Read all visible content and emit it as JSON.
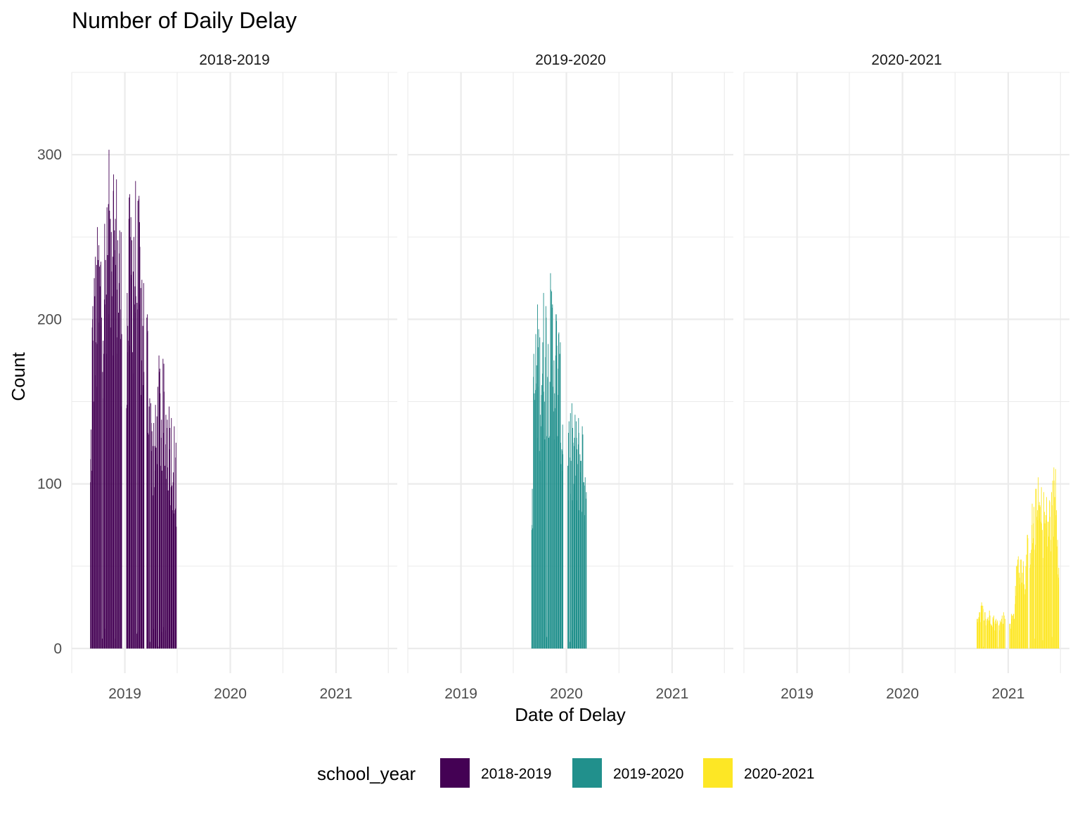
{
  "chart_data": {
    "type": "bar",
    "title": "Number of Daily Delay",
    "xlabel": "Date of Delay",
    "ylabel": "Count",
    "facet_by": "school_year",
    "panels": [
      "2018-2019",
      "2019-2020",
      "2020-2021"
    ],
    "x_axis": {
      "type": "date",
      "range": [
        "2018-07-01",
        "2021-08-01"
      ],
      "major_ticks": [
        "2019-01-01",
        "2020-01-01",
        "2021-01-01"
      ],
      "major_tick_labels": [
        "2019",
        "2020",
        "2021"
      ],
      "minor_ticks": [
        "2018-07-01",
        "2019-07-01",
        "2020-07-01",
        "2021-07-01"
      ]
    },
    "y_axis": {
      "range": [
        -15,
        350
      ],
      "major_ticks": [
        0,
        100,
        200,
        300
      ],
      "minor_ticks": [
        50,
        150,
        250,
        350
      ]
    },
    "grid": true,
    "legend": {
      "title": "school_year",
      "position": "bottom",
      "entries": [
        {
          "label": "2018-2019",
          "color": "#440154"
        },
        {
          "label": "2019-2020",
          "color": "#21908C"
        },
        {
          "label": "2020-2021",
          "color": "#FDE725"
        }
      ]
    },
    "series": [
      {
        "name": "2018-2019",
        "color": "#440154",
        "date_range": [
          "2018-09-04",
          "2019-06-28"
        ],
        "envelope_dates": [
          "2018-09-04",
          "2018-09-10",
          "2018-09-20",
          "2018-10-01",
          "2018-10-15",
          "2018-11-01",
          "2018-11-15",
          "2018-12-01",
          "2018-12-20",
          "2019-01-07",
          "2019-01-15",
          "2019-02-01",
          "2019-02-15",
          "2019-03-01",
          "2019-03-20",
          "2019-04-01",
          "2019-04-15",
          "2019-05-01",
          "2019-05-15",
          "2019-06-01",
          "2019-06-15",
          "2019-06-28"
        ],
        "envelope_counts": [
          120,
          225,
          245,
          265,
          275,
          280,
          335,
          300,
          265,
          240,
          275,
          300,
          285,
          255,
          220,
          165,
          145,
          185,
          175,
          160,
          150,
          125
        ]
      },
      {
        "name": "2019-2020",
        "color": "#21908C",
        "date_range": [
          "2019-09-03",
          "2020-03-13"
        ],
        "envelope_dates": [
          "2019-09-03",
          "2019-09-10",
          "2019-09-20",
          "2019-10-01",
          "2019-10-15",
          "2019-11-01",
          "2019-11-15",
          "2019-12-01",
          "2019-12-20",
          "2020-01-07",
          "2020-01-20",
          "2020-02-01",
          "2020-02-15",
          "2020-03-01",
          "2020-03-13"
        ],
        "envelope_counts": [
          85,
          190,
          215,
          205,
          225,
          230,
          230,
          215,
          160,
          150,
          150,
          145,
          145,
          145,
          80
        ]
      },
      {
        "name": "2020-2021",
        "color": "#FDE725",
        "date_range": [
          "2020-09-15",
          "2021-06-25"
        ],
        "envelope_dates": [
          "2020-09-15",
          "2020-10-01",
          "2020-10-15",
          "2020-11-01",
          "2020-11-15",
          "2020-12-01",
          "2020-12-20",
          "2021-01-07",
          "2021-01-20",
          "2021-02-01",
          "2021-02-15",
          "2021-03-01",
          "2021-03-15",
          "2021-04-01",
          "2021-04-15",
          "2021-05-01",
          "2021-05-15",
          "2021-06-01",
          "2021-06-15",
          "2021-06-25"
        ],
        "envelope_counts": [
          25,
          30,
          22,
          25,
          20,
          18,
          25,
          20,
          25,
          60,
          65,
          55,
          85,
          95,
          105,
          100,
          95,
          100,
          130,
          60
        ]
      }
    ]
  }
}
